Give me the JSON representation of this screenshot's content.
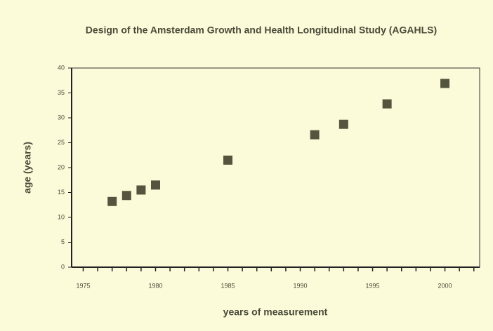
{
  "chart_data": {
    "type": "scatter",
    "title": "Design of the Amsterdam Growth and Health Longitudinal Study (AGAHLS)",
    "x_label": "years of measurement",
    "y_label": "age (years)",
    "series": [
      {
        "name": "AGAHLS",
        "color": "#55553f",
        "x": [
          1977,
          1978,
          1979,
          1980,
          1985,
          1991,
          1993,
          1996,
          2000
        ],
        "values": [
          13.2,
          14.4,
          15.5,
          16.5,
          21.5,
          26.6,
          28.7,
          32.8,
          36.9
        ]
      }
    ],
    "xlim": [
      1974.2,
      2002.4
    ],
    "xticks": [
      1975,
      1980,
      1985,
      1990,
      1995,
      2000
    ],
    "x_minor_ticks": [
      1975,
      1976,
      1977,
      1978,
      1979,
      1980,
      1981,
      1982,
      1983,
      1984,
      1985,
      1986,
      1987,
      1988,
      1989,
      1990,
      1991,
      1992,
      1993,
      1994,
      1995,
      1996,
      1997,
      1998,
      1999,
      2000,
      2001,
      2002
    ],
    "ylim": [
      0,
      40
    ],
    "yticks": [
      0,
      5,
      10,
      15,
      20,
      25,
      30,
      35,
      40
    ]
  }
}
